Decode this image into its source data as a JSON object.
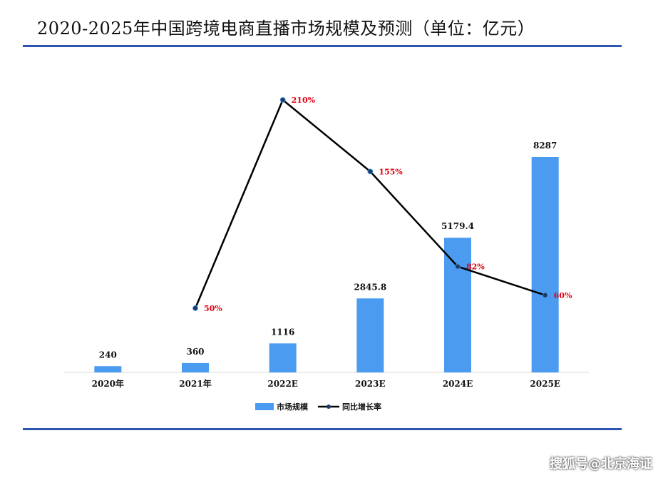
{
  "title": "2020-2025年中国跨境电商直播市场规模及预测（单位：亿元）",
  "watermark": "搜狐号@北京海证",
  "chart_data": {
    "type": "bar",
    "categories": [
      "2020年",
      "2021年",
      "2022E",
      "2023E",
      "2024E",
      "2025E"
    ],
    "series": [
      {
        "name": "市场规模",
        "type": "bar",
        "values": [
          240,
          360,
          1116,
          2845.8,
          5179.4,
          8287
        ],
        "labels": [
          "240",
          "360",
          "1116",
          "2845.8",
          "5179.4",
          "8287"
        ],
        "color": "#4b9cf0"
      },
      {
        "name": "同比增长率",
        "type": "line",
        "values": [
          null,
          50,
          210,
          155,
          82,
          60
        ],
        "labels": [
          "",
          "50%",
          "210%",
          "155%",
          "82%",
          "60%"
        ],
        "color": "#000000"
      }
    ],
    "label_color_line": "#e0000f",
    "legend_position": "bottom",
    "grid": false
  }
}
